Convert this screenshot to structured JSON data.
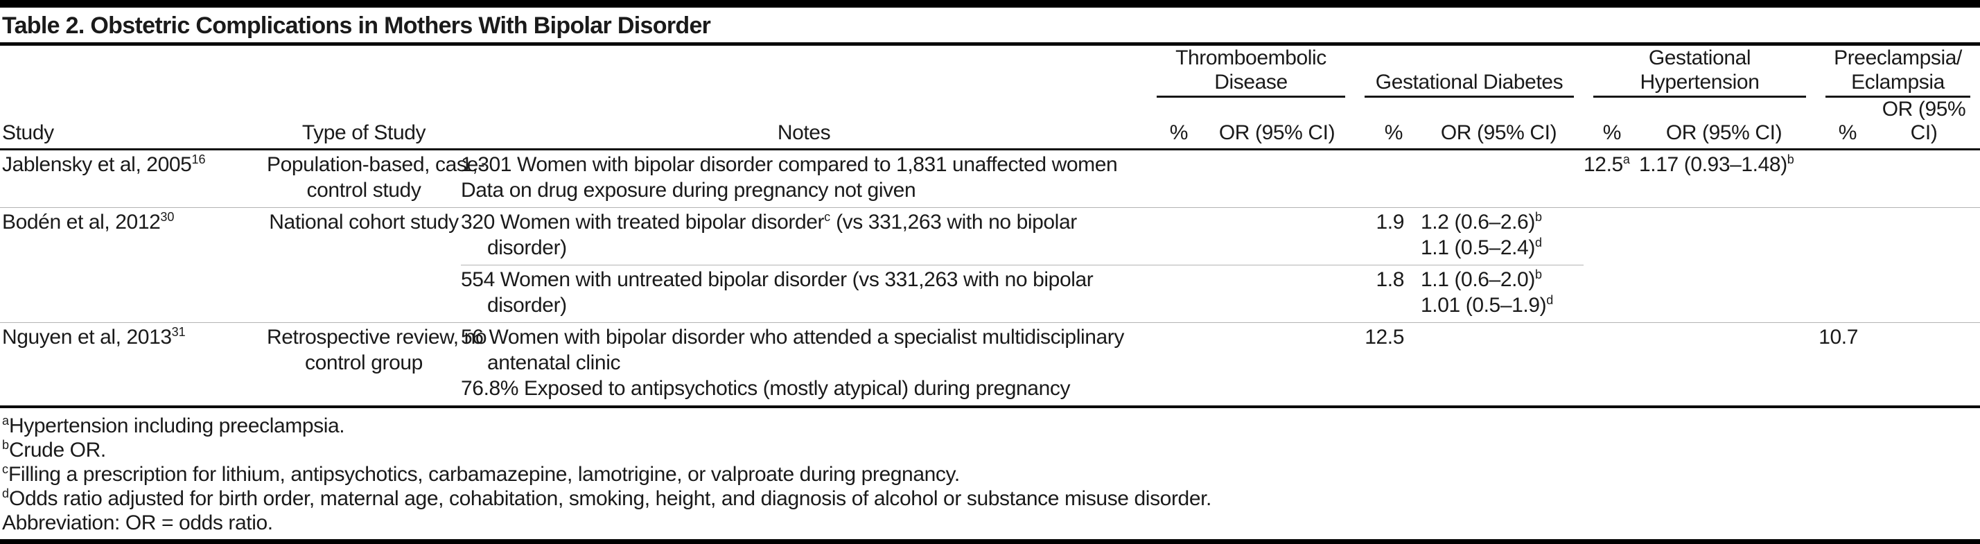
{
  "title": "Table 2. Obstetric Complications in Mothers With Bipolar Disorder",
  "header": {
    "study": "Study",
    "type_of_study": "Type of Study",
    "notes": "Notes",
    "pct": "%",
    "or_ci": "OR (95% CI)",
    "groups": [
      {
        "name": "thromboembolic-disease",
        "lines": [
          "Thromboembolic",
          "Disease"
        ]
      },
      {
        "name": "gestational-diabetes",
        "lines": [
          "Gestational Diabetes"
        ]
      },
      {
        "name": "gestational-hypertension",
        "lines": [
          "Gestational",
          "Hypertension"
        ]
      },
      {
        "name": "preeclampsia-eclampsia",
        "lines": [
          "Preeclampsia/",
          "Eclampsia"
        ]
      }
    ]
  },
  "rows": [
    {
      "divider": "none",
      "study": "Jablensky et al, 2005^16^",
      "type_of_study": [
        "Population-based, case-",
        "control study"
      ],
      "notes": [
        {
          "t": "1,301 Women with bipolar disorder compared to 1,831 unaffected women"
        },
        {
          "t": "Data on drug exposure during pregnancy not given"
        }
      ],
      "thromboembolic_disease": {
        "pct": "",
        "or": []
      },
      "gestational_diabetes": {
        "pct": "",
        "or": []
      },
      "gestational_hypertension": {
        "pct": "12.5^a^",
        "or": [
          "1.17 (0.93–1.48)^b^"
        ]
      },
      "preeclampsia_eclampsia": {
        "pct": "",
        "or": []
      }
    },
    {
      "divider": "full",
      "study": "Bodén et al, 2012^30^",
      "type_of_study": [
        "National cohort study"
      ],
      "notes": [
        {
          "t": "320 Women with treated bipolar disorder^c^ (vs 331,263 with no bipolar"
        },
        {
          "t": "disorder)",
          "ind": true
        }
      ],
      "thromboembolic_disease": {
        "pct": "",
        "or": []
      },
      "gestational_diabetes": {
        "pct": "1.9",
        "or": [
          "1.2 (0.6–2.6)^b^",
          "1.1 (0.5–2.4)^d^"
        ]
      },
      "gestational_hypertension": {
        "pct": "",
        "or": []
      },
      "preeclampsia_eclampsia": {
        "pct": "",
        "or": []
      }
    },
    {
      "divider": "sub",
      "study": "",
      "type_of_study": [],
      "notes": [
        {
          "t": "554 Women with untreated bipolar disorder (vs 331,263 with no bipolar"
        },
        {
          "t": "disorder)",
          "ind": true
        }
      ],
      "thromboembolic_disease": {
        "pct": "",
        "or": []
      },
      "gestational_diabetes": {
        "pct": "1.8",
        "or": [
          "1.1 (0.6–2.0)^b^",
          "1.01 (0.5–1.9)^d^"
        ]
      },
      "gestational_hypertension": {
        "pct": "",
        "or": []
      },
      "preeclampsia_eclampsia": {
        "pct": "",
        "or": []
      }
    },
    {
      "divider": "full",
      "study": "Nguyen et al, 2013^31^",
      "type_of_study": [
        "Retrospective review, no",
        "control group"
      ],
      "notes": [
        {
          "t": "56 Women with bipolar disorder who attended a specialist multidisciplinary"
        },
        {
          "t": "antenatal clinic",
          "ind": true
        },
        {
          "t": "76.8% Exposed to antipsychotics (mostly atypical) during pregnancy"
        }
      ],
      "thromboembolic_disease": {
        "pct": "",
        "or": []
      },
      "gestational_diabetes": {
        "pct": "12.5",
        "or": []
      },
      "gestational_hypertension": {
        "pct": "",
        "or": []
      },
      "preeclampsia_eclampsia": {
        "pct": "10.7",
        "or": []
      }
    }
  ],
  "footnotes": [
    "^a^Hypertension including preeclampsia.",
    "^b^Crude OR.",
    "^c^Filling a prescription for lithium, antipsychotics, carbamazepine, lamotrigine, or valproate during pregnancy.",
    "^d^Odds ratio adjusted for birth order, maternal age, cohabitation, smoking, height, and diagnosis of alcohol or substance misuse disorder.",
    "Abbreviation: OR = odds ratio."
  ],
  "colors": {
    "text": "#1a1a1a",
    "rule": "#0a0a0a",
    "row_divider": "#b3b3b3",
    "background": "#ffffff"
  }
}
